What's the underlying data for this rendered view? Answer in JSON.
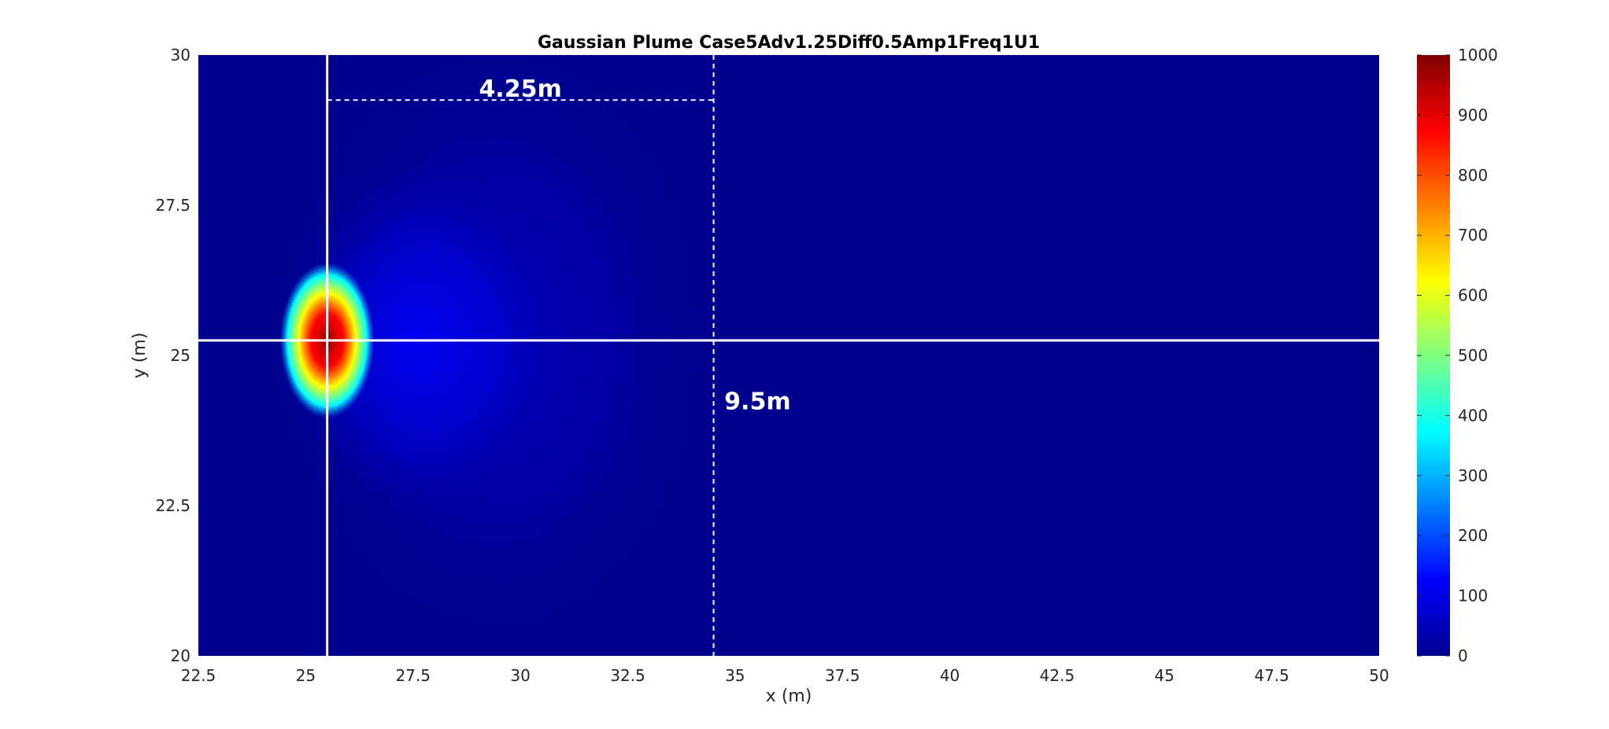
{
  "chart_data": {
    "type": "heatmap",
    "title": "Gaussian Plume Case5Adv1.25Diff0.5Amp1Freq1U1",
    "xlabel": "x (m)",
    "ylabel": "y (m)",
    "xlim": [
      22.5,
      50
    ],
    "ylim": [
      20,
      30
    ],
    "x_ticks": [
      22.5,
      25,
      27.5,
      30,
      32.5,
      35,
      37.5,
      40,
      42.5,
      45,
      47.5,
      50
    ],
    "x_tick_labels": [
      "22.5",
      "25",
      "27.5",
      "30",
      "32.5",
      "35",
      "37.5",
      "40",
      "42.5",
      "45",
      "47.5",
      "50"
    ],
    "y_ticks": [
      20,
      22.5,
      25,
      27.5,
      30
    ],
    "y_tick_labels": [
      "20",
      "22.5",
      "25",
      "27.5",
      "30"
    ],
    "colormap": "jet",
    "clim": [
      0,
      1000
    ],
    "colorbar_ticks": [
      0,
      100,
      200,
      300,
      400,
      500,
      600,
      700,
      800,
      900,
      1000
    ],
    "colorbar_tick_labels": [
      "0",
      "100",
      "200",
      "300",
      "400",
      "500",
      "600",
      "700",
      "800",
      "900",
      "1000"
    ],
    "background_value": 10,
    "plume": {
      "source_x": 25.5,
      "source_y": 25.25,
      "peak_value": 1000
    },
    "guides": {
      "vertical_solid_x": 25.5,
      "horizontal_solid_y": 25.25,
      "vertical_dashed_x": 34.5,
      "horizontal_dashed_y": 29.25,
      "horizontal_dashed_x_range": [
        25.5,
        34.5
      ]
    },
    "annotations": [
      {
        "text": "4.25m",
        "x": 30.0,
        "y": 29.45
      },
      {
        "text": "9.5m",
        "x": 34.75,
        "y": 24.25
      }
    ]
  }
}
